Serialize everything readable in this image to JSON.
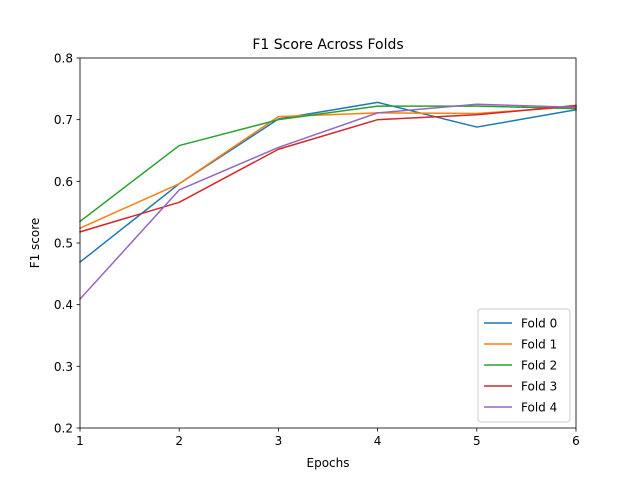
{
  "chart_data": {
    "type": "line",
    "title": "F1 Score Across Folds",
    "xlabel": "Epochs",
    "ylabel": "F1 score",
    "x": [
      1,
      2,
      3,
      4,
      5,
      6
    ],
    "xlim": [
      1,
      6
    ],
    "ylim": [
      0.2,
      0.8
    ],
    "xticks": [
      "1",
      "2",
      "3",
      "4",
      "5",
      "6"
    ],
    "yticks": [
      "0.2",
      "0.3",
      "0.4",
      "0.5",
      "0.6",
      "0.7",
      "0.8"
    ],
    "grid": false,
    "legend_position": "lower-right",
    "series": [
      {
        "name": "Fold 0",
        "color": "#1f77b4",
        "values": [
          0.469,
          0.596,
          0.701,
          0.728,
          0.688,
          0.716
        ]
      },
      {
        "name": "Fold 1",
        "color": "#ff7f0e",
        "values": [
          0.524,
          0.596,
          0.705,
          0.711,
          0.71,
          0.721
        ]
      },
      {
        "name": "Fold 2",
        "color": "#2ca02c",
        "values": [
          0.535,
          0.658,
          0.7,
          0.722,
          0.722,
          0.718
        ]
      },
      {
        "name": "Fold 3",
        "color": "#d62728",
        "values": [
          0.518,
          0.566,
          0.652,
          0.7,
          0.708,
          0.723
        ]
      },
      {
        "name": "Fold 4",
        "color": "#9467bd",
        "values": [
          0.409,
          0.586,
          0.655,
          0.711,
          0.725,
          0.72
        ]
      }
    ]
  }
}
